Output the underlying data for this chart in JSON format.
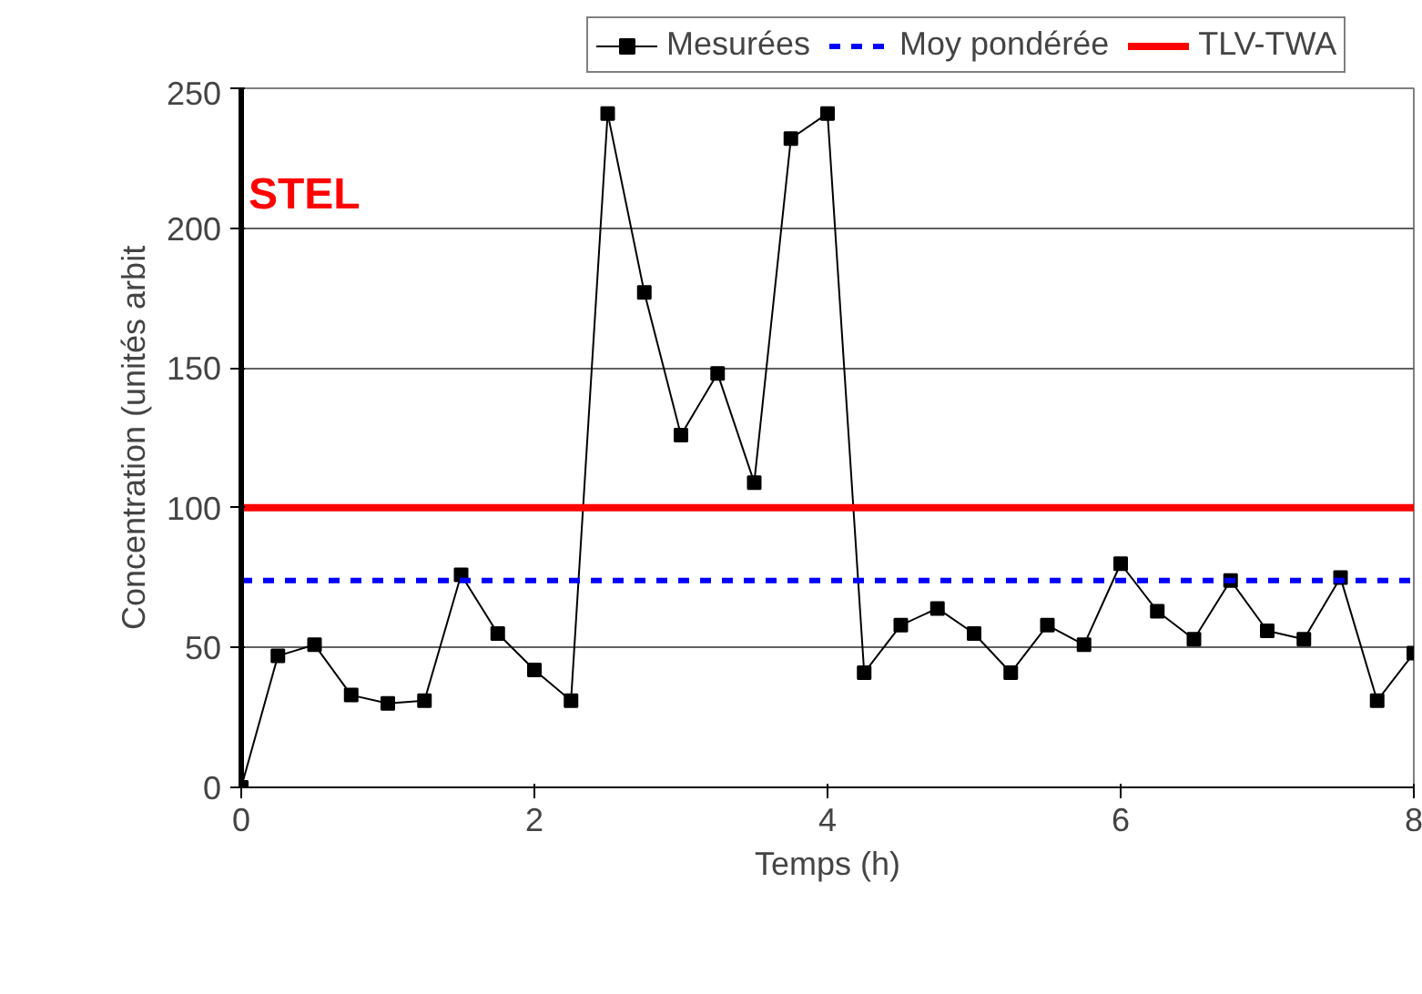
{
  "chart_data": {
    "type": "line",
    "xlabel": "Temps (h)",
    "ylabel": "Concentration (unités arbit",
    "xlim": [
      0,
      8
    ],
    "xticks": [
      0,
      2,
      4,
      6,
      8
    ],
    "ylim": [
      0,
      250
    ],
    "yticks": [
      0,
      50,
      100,
      150,
      200,
      250
    ],
    "grid": "y",
    "legend": "top",
    "marker": "square",
    "line_style": "solid",
    "x": [
      0,
      0.25,
      0.5,
      0.75,
      1,
      1.25,
      1.5,
      1.75,
      2,
      2.25,
      2.5,
      2.75,
      3,
      3.25,
      3.5,
      3.75,
      4,
      4.25,
      4.5,
      4.75,
      5,
      5.25,
      5.5,
      5.75,
      6,
      6.25,
      6.5,
      6.75,
      7,
      7.25,
      7.5,
      7.75,
      8
    ],
    "series": [
      {
        "name": "Mesurées",
        "color": "#000000",
        "values": [
          0,
          47,
          51,
          33,
          30,
          31,
          76,
          55,
          42,
          31,
          241,
          177,
          126,
          148,
          109,
          232,
          241,
          41,
          58,
          64,
          55,
          41,
          58,
          51,
          80,
          63,
          53,
          74,
          56,
          53,
          75,
          31,
          48
        ]
      }
    ],
    "ref_lines": [
      {
        "axis": "y",
        "value": 74,
        "label": "Moy pondérée",
        "color": "#0000ff",
        "line_style": "dashed"
      },
      {
        "axis": "y",
        "value": 100,
        "label": "TLV-TWA",
        "color": "#ff0000",
        "line_style": "solid"
      }
    ],
    "annotations": [
      "STEL"
    ]
  }
}
